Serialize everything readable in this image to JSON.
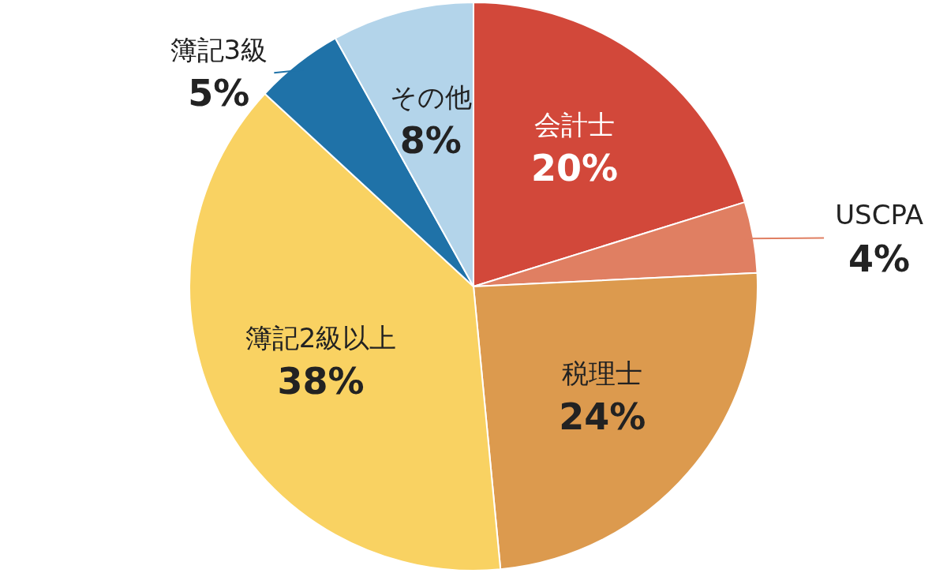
{
  "chart_data": {
    "type": "pie",
    "categories": [
      "会計士",
      "USCPA",
      "税理士",
      "簿記2級以上",
      "簿記3級",
      "その他"
    ],
    "values": [
      20,
      4,
      24,
      38,
      5,
      8
    ],
    "colors": [
      "#d2483a",
      "#e07f62",
      "#dc9a4e",
      "#f9d262",
      "#1f72a8",
      "#b3d4ea"
    ],
    "value_labels": [
      "20%",
      "4%",
      "24%",
      "38%",
      "5%",
      "8%"
    ]
  }
}
